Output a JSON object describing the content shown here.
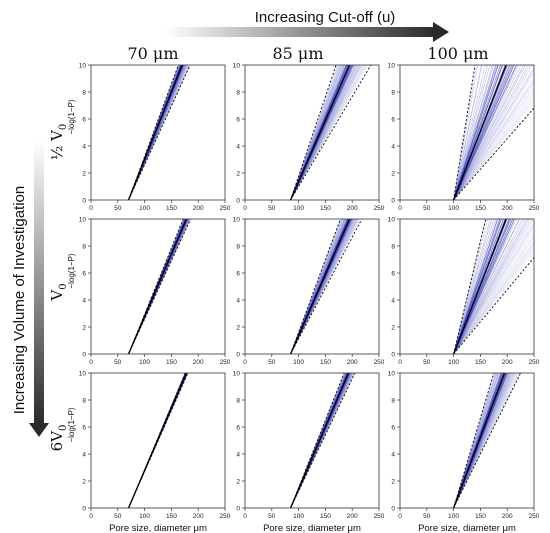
{
  "figure": {
    "top_arrow_label": "Increasing Cut-off (u)",
    "left_arrow_label": "Increasing Volume of Investigation",
    "column_headers": [
      "70 μm",
      "85 μm",
      "100 μm"
    ],
    "row_labels": [
      {
        "main": "½ V",
        "sub": "0",
        "prefix": ""
      },
      {
        "main": "V",
        "sub": "0",
        "prefix": ""
      },
      {
        "main": "V",
        "sub": "0",
        "prefix": "6"
      }
    ]
  },
  "chart_data": {
    "type": "line",
    "layout": "3x3 small multiples",
    "xlabel": "Pore size, diameter μm",
    "ylabel": "−log(1−P)",
    "xlim": [
      0,
      250
    ],
    "ylim": [
      0,
      10
    ],
    "x_ticks": [
      "0",
      "50",
      "100",
      "150",
      "200",
      "250"
    ],
    "y_ticks": [
      "0",
      "2",
      "4",
      "6",
      "8",
      "10"
    ],
    "colors": {
      "realizations": "#2b2fb0",
      "median": "#000000",
      "bounds": "#000000"
    },
    "panels": [
      {
        "row": 0,
        "col": 0,
        "cutoff": 70,
        "x_at_top": {
          "median": 170,
          "bound_lo": 163,
          "bound_hi": 185
        },
        "realization_spread": [
          163,
          185
        ],
        "realization_count": 40
      },
      {
        "row": 0,
        "col": 1,
        "cutoff": 85,
        "x_at_top": {
          "median": 195,
          "bound_lo": 170,
          "bound_hi": 235
        },
        "realization_spread": [
          172,
          230
        ],
        "realization_count": 40
      },
      {
        "row": 0,
        "col": 2,
        "cutoff": 100,
        "x_at_top": {
          "median": 198,
          "bound_lo": 140,
          "bound_hi": 320
        },
        "realization_spread": [
          140,
          310
        ],
        "realization_count": 40
      },
      {
        "row": 1,
        "col": 0,
        "cutoff": 70,
        "x_at_top": {
          "median": 178,
          "bound_lo": 172,
          "bound_hi": 186
        },
        "realization_spread": [
          172,
          186
        ],
        "realization_count": 40
      },
      {
        "row": 1,
        "col": 1,
        "cutoff": 85,
        "x_at_top": {
          "median": 195,
          "bound_lo": 178,
          "bound_hi": 218
        },
        "realization_spread": [
          178,
          215
        ],
        "realization_count": 40
      },
      {
        "row": 1,
        "col": 2,
        "cutoff": 100,
        "x_at_top": {
          "median": 198,
          "bound_lo": 160,
          "bound_hi": 310
        },
        "realization_spread": [
          160,
          300
        ],
        "realization_count": 40
      },
      {
        "row": 2,
        "col": 0,
        "cutoff": 70,
        "x_at_top": {
          "median": 178,
          "bound_lo": 176,
          "bound_hi": 181
        },
        "realization_spread": [
          175,
          181
        ],
        "realization_count": 40
      },
      {
        "row": 2,
        "col": 1,
        "cutoff": 85,
        "x_at_top": {
          "median": 193,
          "bound_lo": 185,
          "bound_hi": 205
        },
        "realization_spread": [
          185,
          205
        ],
        "realization_count": 40
      },
      {
        "row": 2,
        "col": 2,
        "cutoff": 100,
        "x_at_top": {
          "median": 195,
          "bound_lo": 175,
          "bound_hi": 225
        },
        "realization_spread": [
          175,
          225
        ],
        "realization_count": 40
      }
    ]
  }
}
